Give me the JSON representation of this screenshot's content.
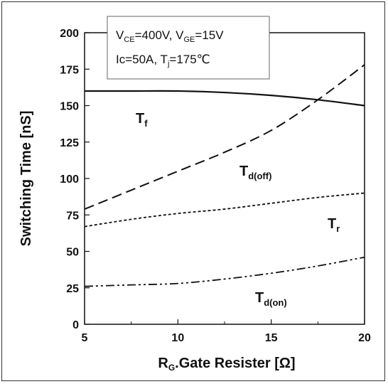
{
  "chart_data": {
    "type": "line",
    "xlabel": "R",
    "xlabel_sub": "G",
    "xlabel_rest": ".Gate Resister [Ω]",
    "ylabel": "Switching Time [nS]",
    "xlim": [
      5,
      20
    ],
    "ylim": [
      0,
      200
    ],
    "xticks": [
      "5",
      "10",
      "15",
      "20"
    ],
    "yticks": [
      "0",
      "25",
      "50",
      "75",
      "100",
      "125",
      "150",
      "175",
      "200"
    ],
    "conditions": {
      "line1": {
        "a": "V",
        "a_sub": "CE",
        "b": "=400V, V",
        "b_sub": "GE",
        "c": "=15V"
      },
      "line2": {
        "a": "Ic=50A, T",
        "a_sub": "j",
        "b": "=175℃"
      }
    },
    "series": [
      {
        "name": "Tf",
        "label_main": "T",
        "label_sub": "f",
        "style": "solid",
        "x": [
          5,
          7.5,
          10,
          12.5,
          15,
          17.5,
          20
        ],
        "values": [
          160,
          160,
          160,
          159,
          157,
          154,
          150
        ]
      },
      {
        "name": "Td(off)",
        "label_main": "T",
        "label_sub": "d(off)",
        "style": "dashed",
        "x": [
          5,
          7.5,
          10,
          12.5,
          15,
          17.5,
          20
        ],
        "values": [
          79,
          92,
          105,
          118,
          133,
          154,
          178
        ]
      },
      {
        "name": "Tr",
        "label_main": "T",
        "label_sub": "r",
        "style": "dotted",
        "x": [
          5,
          7.5,
          10,
          12.5,
          15,
          17.5,
          20
        ],
        "values": [
          67,
          72,
          76,
          79,
          83,
          87,
          90
        ]
      },
      {
        "name": "Td(on)",
        "label_main": "T",
        "label_sub": "d(on)",
        "style": "dashdot",
        "x": [
          5,
          7.5,
          10,
          12.5,
          15,
          17.5,
          20
        ],
        "values": [
          26,
          27,
          28,
          31,
          35,
          40,
          46
        ]
      }
    ],
    "grid": false,
    "colors": {
      "line": "#111111",
      "frame": "#333333"
    }
  }
}
